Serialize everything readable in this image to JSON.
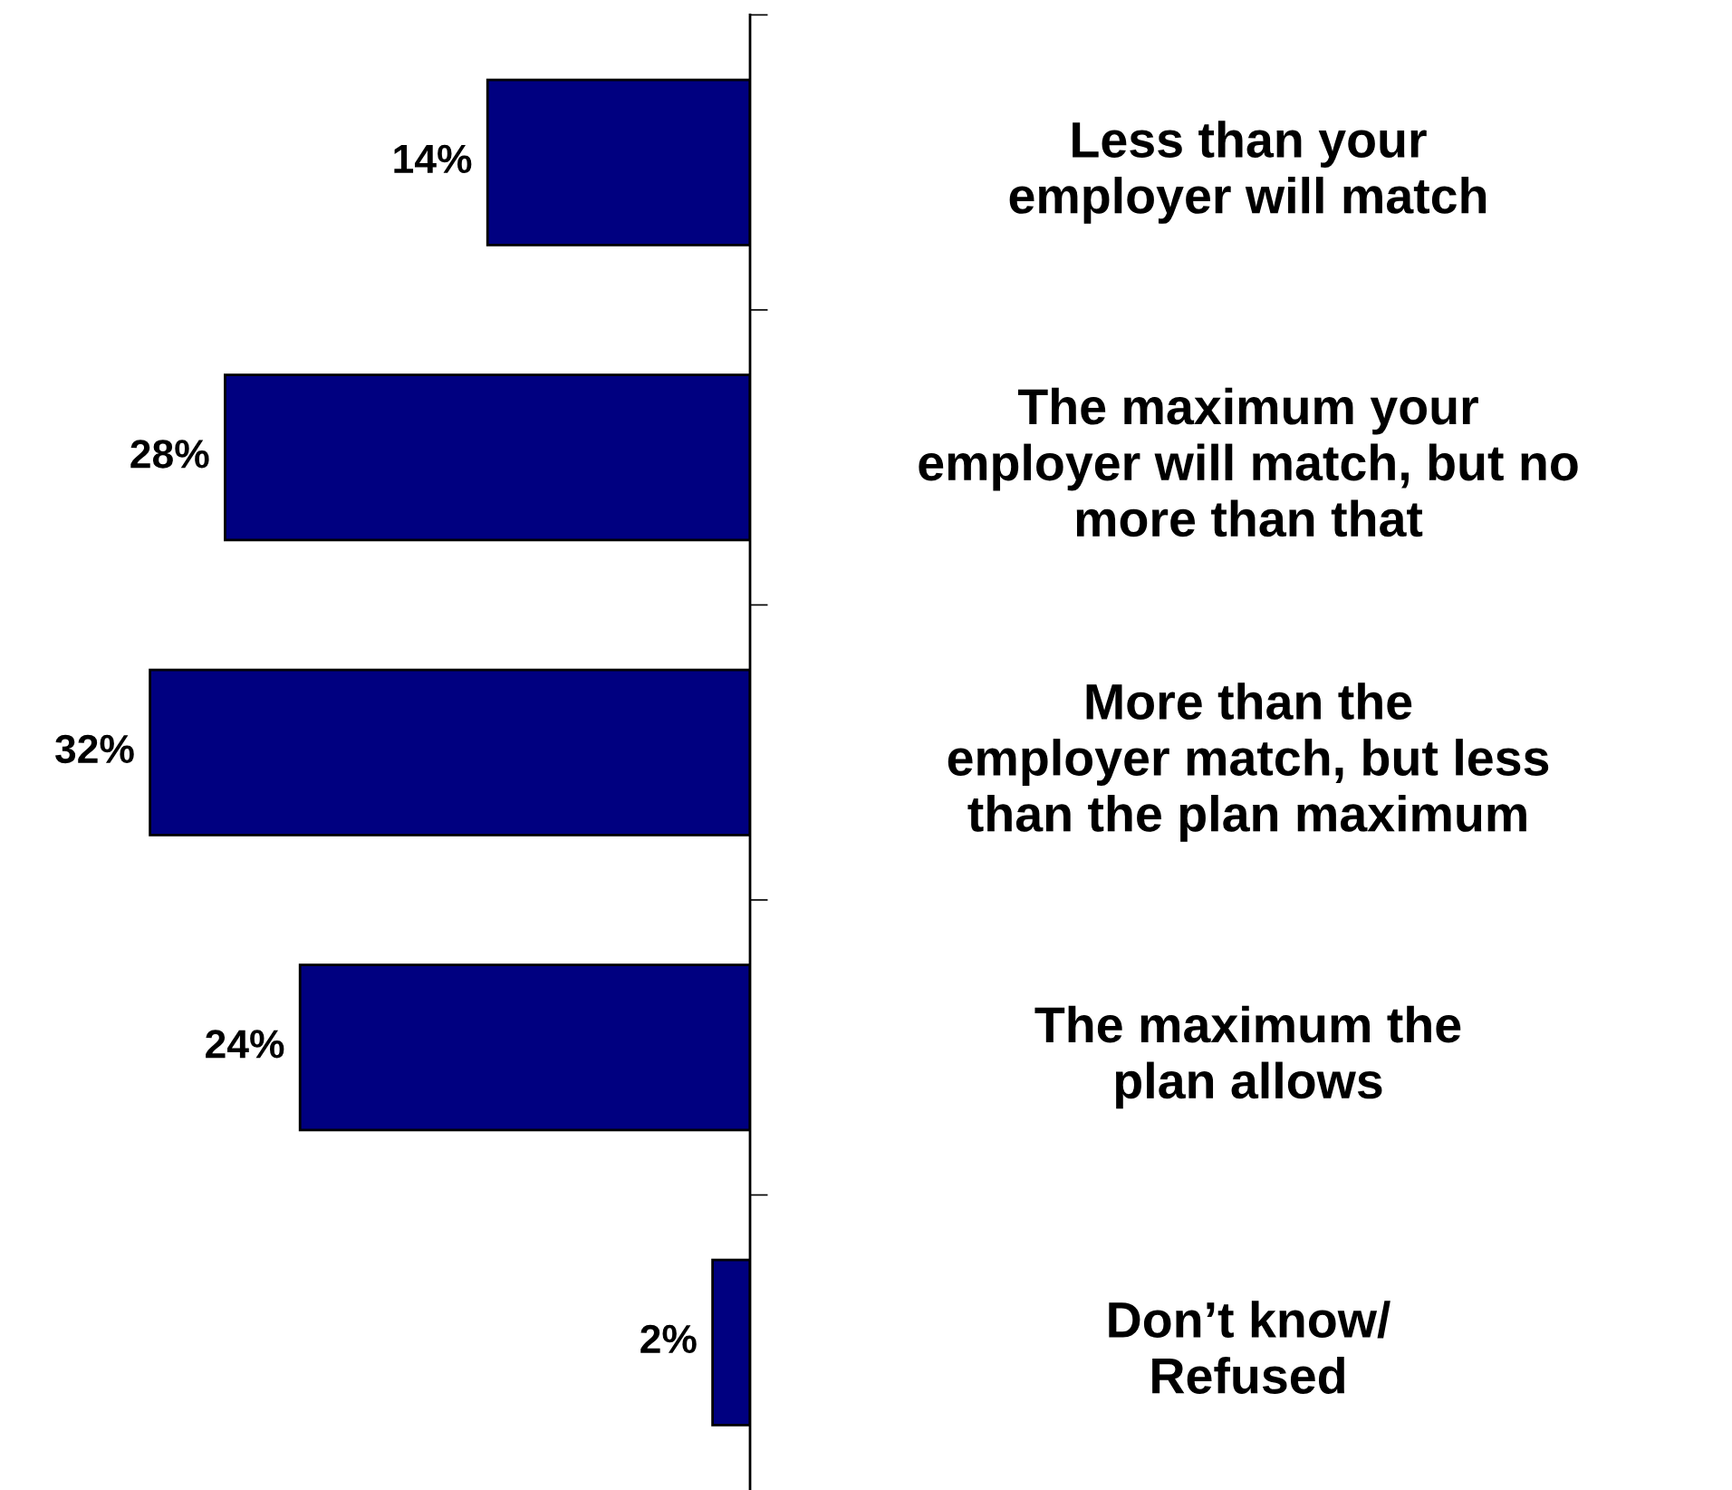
{
  "chart_data": {
    "type": "bar",
    "orientation": "horizontal",
    "categories": [
      "Less than your\nemployer will match",
      "The maximum your\nemployer will match, but no\nmore than that",
      "More than the\nemployer match, but less\nthan the plan maximum",
      "The maximum the\nplan allows",
      "Don’t know/\nRefused"
    ],
    "values": [
      14,
      28,
      32,
      24,
      2
    ],
    "value_labels": [
      "14%",
      "28%",
      "32%",
      "24%",
      "2%"
    ],
    "color": "#000080",
    "grid": false,
    "legend": false
  }
}
